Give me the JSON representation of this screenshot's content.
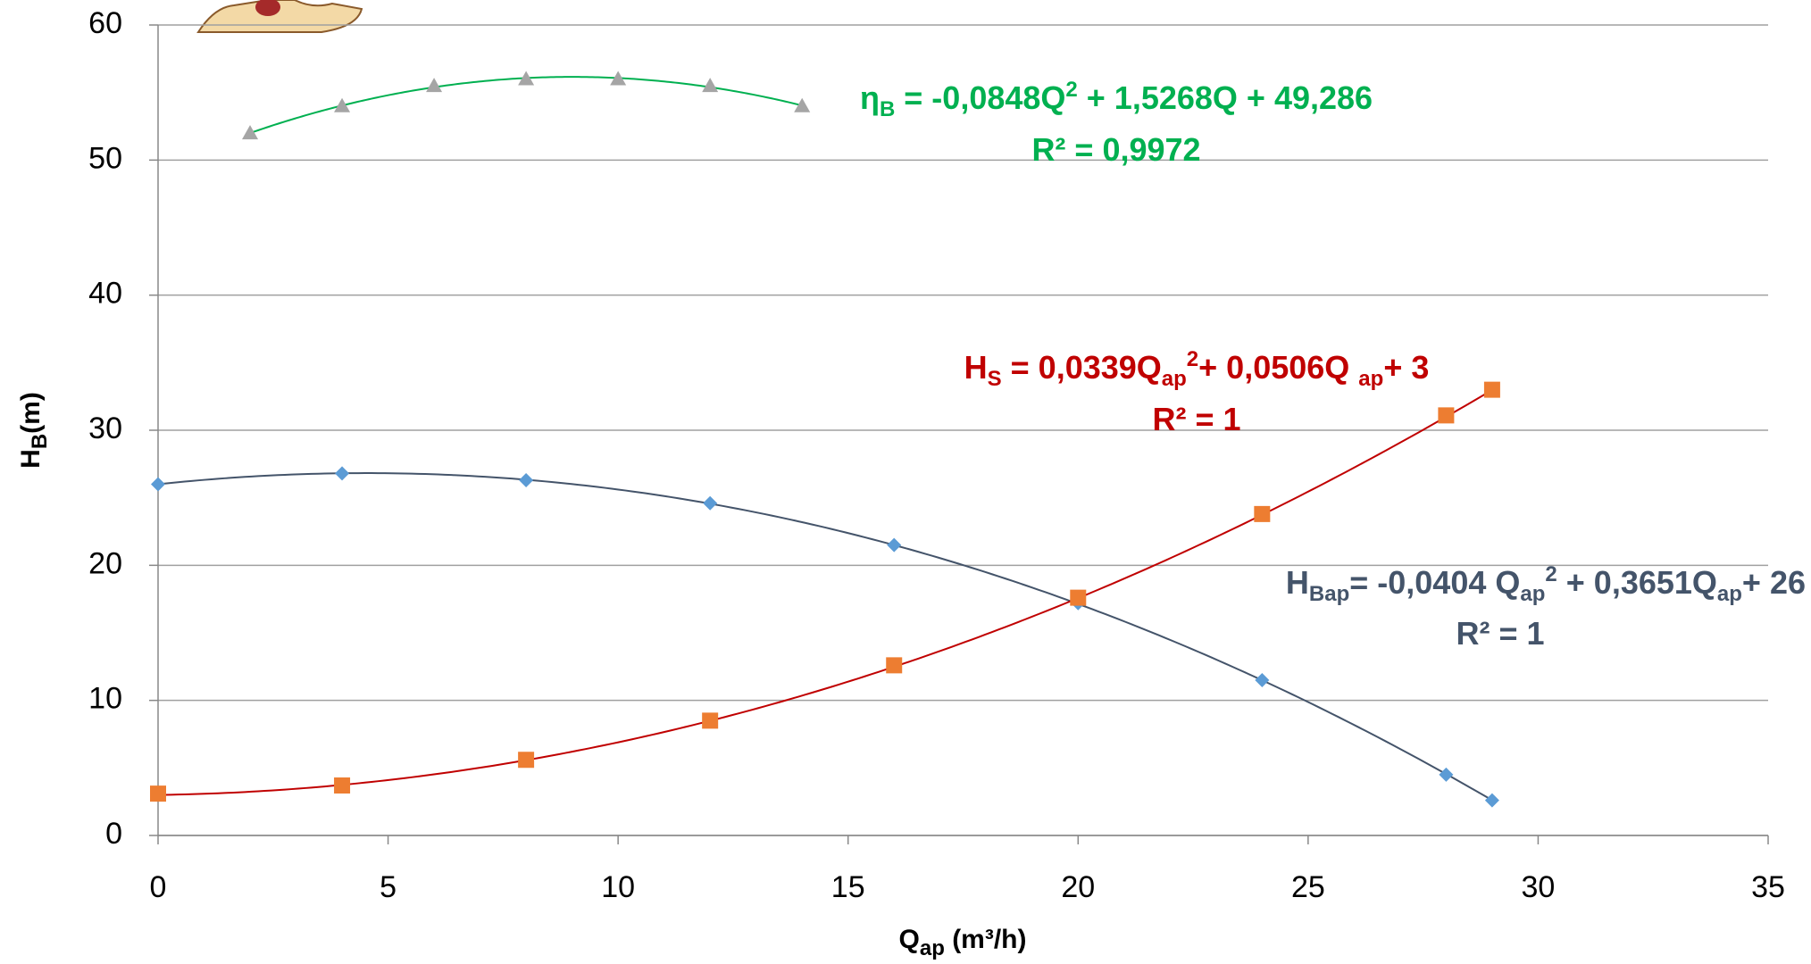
{
  "chart_data": {
    "type": "scatter",
    "x_label": [
      "Q",
      "ap",
      " (m³/h)"
    ],
    "y_label": [
      "H",
      "B",
      "(m)"
    ],
    "xlim": [
      0,
      35
    ],
    "xticks": [
      0,
      5,
      10,
      15,
      20,
      25,
      30,
      35
    ],
    "ylim": [
      0,
      60
    ],
    "yticks": [
      0,
      10,
      20,
      30,
      40,
      50,
      60
    ],
    "grid": true,
    "series": [
      {
        "marker": "diamond",
        "color": "#5b9bd5",
        "line_color": "#44546a",
        "x": [
          0,
          4,
          8,
          12,
          16,
          20,
          24,
          28,
          29
        ],
        "values": [
          26,
          26.8,
          26.3,
          24.6,
          21.5,
          17.2,
          11.5,
          4.5,
          2.6
        ],
        "trendline": {
          "type": "polynomial",
          "coefficients": [
            -0.0404,
            0.3651,
            26
          ]
        },
        "equation": [
          "H",
          "Bap",
          "= -0,0404 Q",
          "ap",
          "2",
          " + 0,3651Q",
          "ap",
          "+ 26"
        ],
        "r2": "R² = 1"
      },
      {
        "marker": "square",
        "color": "#ed7d31",
        "line_color": "#c00000",
        "x": [
          0,
          4,
          8,
          12,
          16,
          20,
          24,
          28,
          29
        ],
        "values": [
          3.1,
          3.7,
          5.6,
          8.5,
          12.6,
          17.6,
          23.8,
          31.1,
          33
        ],
        "trendline": {
          "type": "polynomial",
          "coefficients": [
            0.0339,
            0.0506,
            3
          ]
        },
        "equation": [
          "H",
          "S",
          " = 0,0339Q",
          "ap",
          "2",
          "+ 0,0506Q ",
          "ap",
          "+ 3"
        ],
        "r2": "R² = 1"
      },
      {
        "marker": "triangle",
        "color": "#a5a5a5",
        "line_color": "#00b050",
        "x": [
          2,
          4,
          6,
          8,
          10,
          12,
          14
        ],
        "values": [
          52,
          54,
          55.5,
          56,
          56,
          55.5,
          54
        ],
        "trendline": {
          "type": "polynomial",
          "coefficients": [
            -0.0848,
            1.5268,
            49.286
          ]
        },
        "equation": [
          "η",
          "B",
          " = -0,0848Q",
          "2",
          " + 1,5268Q + 49,286"
        ],
        "r2": "R² = 0,9972"
      }
    ]
  }
}
